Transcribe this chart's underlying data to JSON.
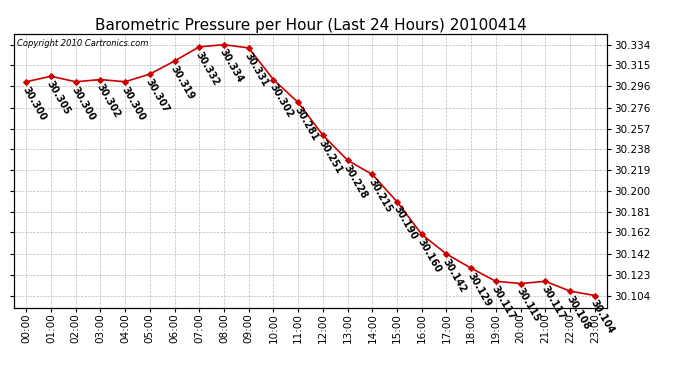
{
  "title": "Barometric Pressure per Hour (Last 24 Hours) 20100414",
  "copyright": "Copyright 2010 Cartronics.com",
  "hours": [
    0,
    1,
    2,
    3,
    4,
    5,
    6,
    7,
    8,
    9,
    10,
    11,
    12,
    13,
    14,
    15,
    16,
    17,
    18,
    19,
    20,
    21,
    22,
    23
  ],
  "values": [
    30.3,
    30.305,
    30.3,
    30.302,
    30.3,
    30.307,
    30.319,
    30.332,
    30.334,
    30.331,
    30.302,
    30.281,
    30.251,
    30.228,
    30.215,
    30.19,
    30.16,
    30.142,
    30.129,
    30.117,
    30.115,
    30.117,
    30.108,
    30.104
  ],
  "yticks": [
    30.104,
    30.123,
    30.142,
    30.162,
    30.181,
    30.2,
    30.219,
    30.238,
    30.257,
    30.276,
    30.296,
    30.315,
    30.334
  ],
  "ylim_min": 30.093,
  "ylim_max": 30.344,
  "line_color": "#cc0000",
  "marker_color": "#cc0000",
  "bg_color": "#ffffff",
  "grid_color": "#bbbbbb",
  "title_fontsize": 11,
  "tick_fontsize": 7.5,
  "annotation_fontsize": 7,
  "annotation_rotation": -60
}
